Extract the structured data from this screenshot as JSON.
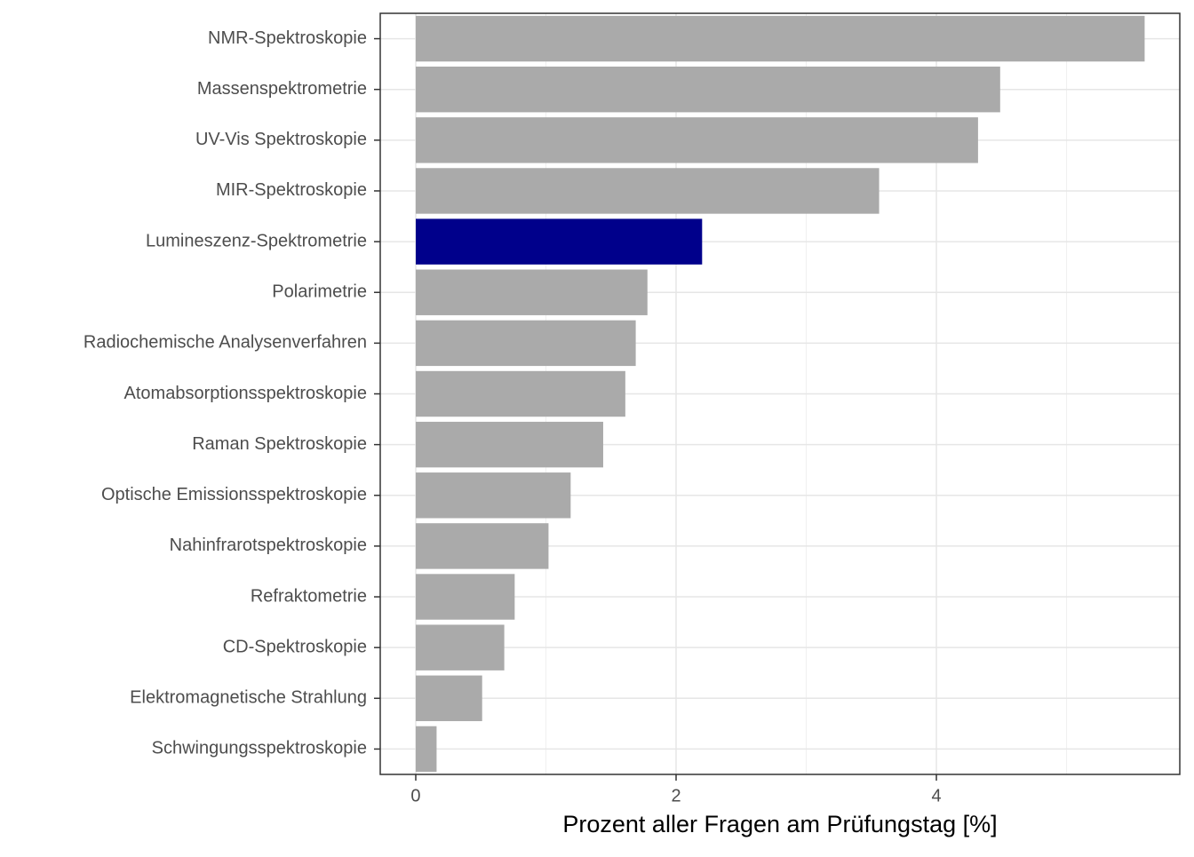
{
  "chart_data": {
    "type": "barh",
    "x_label": "Prozent aller Fragen am Prüfungstag [%]",
    "categories": [
      "NMR-Spektroskopie",
      "Massenspektrometrie",
      "UV-Vis Spektroskopie",
      "MIR-Spektroskopie",
      "Lumineszenz-Spektrometrie",
      "Polarimetrie",
      "Radiochemische Analysenverfahren",
      "Atomabsorptionsspektroskopie",
      "Raman Spektroskopie",
      "Optische Emissionsspektroskopie",
      "Nahinfrarotspektroskopie",
      "Refraktometrie",
      "CD-Spektroskopie",
      "Elektromagnetische Strahlung",
      "Schwingungsspektroskopie"
    ],
    "values": [
      5.6,
      4.49,
      4.32,
      3.56,
      2.2,
      1.78,
      1.69,
      1.61,
      1.44,
      1.19,
      1.02,
      0.76,
      0.68,
      0.51,
      0.16
    ],
    "colors": [
      "#aaaaaa",
      "#aaaaaa",
      "#aaaaaa",
      "#aaaaaa",
      "#00008b",
      "#aaaaaa",
      "#aaaaaa",
      "#aaaaaa",
      "#aaaaaa",
      "#aaaaaa",
      "#aaaaaa",
      "#aaaaaa",
      "#aaaaaa",
      "#aaaaaa",
      "#aaaaaa"
    ],
    "xlim": [
      -0.273,
      5.87
    ],
    "xticks": [
      0,
      2,
      4
    ],
    "minor_xticks": [
      1,
      3,
      5
    ],
    "grid": true
  }
}
